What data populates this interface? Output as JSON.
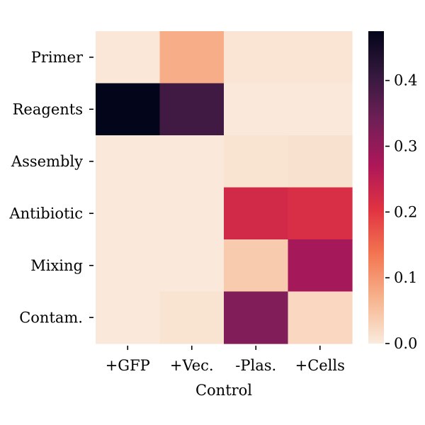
{
  "chart_data": {
    "type": "heatmap",
    "title": "",
    "xlabel": "Control",
    "ylabel": "",
    "x_categories": [
      "+GFP",
      "+Vec.",
      "-Plas.",
      "+Cells"
    ],
    "y_categories": [
      "Primer",
      "Reagents",
      "Assembly",
      "Antibiotic",
      "Mixing",
      "Contam."
    ],
    "values": [
      [
        0.005,
        0.075,
        0.008,
        0.008
      ],
      [
        0.475,
        0.395,
        0.003,
        0.003
      ],
      [
        0.002,
        0.002,
        0.01,
        0.012
      ],
      [
        0.002,
        0.002,
        0.225,
        0.215
      ],
      [
        0.002,
        0.002,
        0.04,
        0.28
      ],
      [
        0.002,
        0.01,
        0.32,
        0.025
      ]
    ],
    "colorbar": {
      "range": [
        0.0,
        0.475
      ],
      "ticks": [
        "0.0",
        "0.1",
        "0.2",
        "0.3",
        "0.4"
      ],
      "tick_values": [
        0.0,
        0.1,
        0.2,
        0.3,
        0.4
      ]
    },
    "colormap": [
      "#faebdd",
      "#f6b48e",
      "#f37651",
      "#e13342",
      "#ad1759",
      "#701f57",
      "#35193e",
      "#03051a"
    ]
  }
}
